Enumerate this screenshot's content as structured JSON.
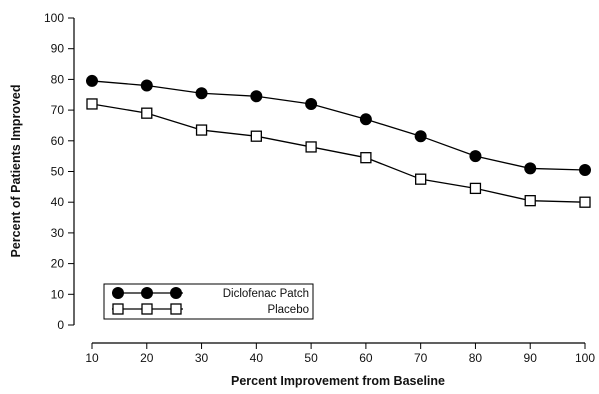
{
  "chart_data": {
    "type": "line",
    "title": "",
    "xlabel": "Percent Improvement from Baseline",
    "ylabel": "Percent of Patients Improved",
    "x": [
      10,
      20,
      30,
      40,
      50,
      60,
      70,
      80,
      90,
      100
    ],
    "xlim": [
      10,
      100
    ],
    "ylim": [
      0,
      100
    ],
    "xticks": [
      "10",
      "20",
      "30",
      "40",
      "50",
      "60",
      "70",
      "80",
      "90",
      "100"
    ],
    "yticks": [
      "0",
      "10",
      "20",
      "30",
      "40",
      "50",
      "60",
      "70",
      "80",
      "90",
      "100"
    ],
    "grid": false,
    "legend_position": "bottom-left",
    "series": [
      {
        "name": "Diclofenac Patch",
        "marker": "filled-circle",
        "color": "#000000",
        "values": [
          79.5,
          78,
          75.5,
          74.5,
          72,
          67,
          61.5,
          55,
          51,
          50.5
        ]
      },
      {
        "name": "Placebo",
        "marker": "open-square",
        "color": "#000000",
        "values": [
          72,
          69,
          63.5,
          61.5,
          58,
          54.5,
          47.5,
          44.5,
          40.5,
          40
        ]
      }
    ]
  }
}
